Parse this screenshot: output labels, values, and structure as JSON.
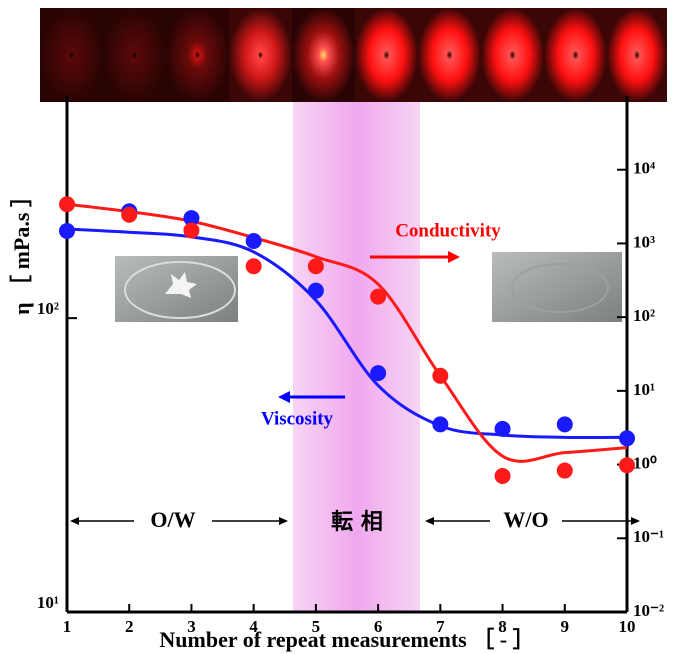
{
  "chart_data": {
    "type": "scatter",
    "xlabel": "Number of repeat measurements ［ - ］",
    "ylabel": "η ［ mPa.s ］",
    "annotations": [
      "Conductivity",
      "Viscosity",
      "O/W",
      "転 相",
      "W/O"
    ],
    "xlim": [
      1,
      10
    ],
    "xticks": [
      1,
      2,
      3,
      4,
      5,
      6,
      7,
      8,
      9,
      10
    ],
    "log_y": true,
    "ylim": [
      10,
      570
    ],
    "yticks": [
      {
        "value": 10,
        "label": "10¹"
      },
      {
        "value": 100,
        "label": "10²"
      }
    ],
    "log_y2": true,
    "y2lim": [
      0.01,
      100000
    ],
    "y2ticks": [
      {
        "value": 0.01,
        "label": "10⁻²"
      },
      {
        "value": 0.1,
        "label": "10⁻¹"
      },
      {
        "value": 1,
        "label": "10⁰"
      },
      {
        "value": 10,
        "label": "10¹"
      },
      {
        "value": 100,
        "label": "10²"
      },
      {
        "value": 1000,
        "label": "10³"
      },
      {
        "value": 10000,
        "label": "10⁴"
      }
    ],
    "series": [
      {
        "color": "#1a1aff",
        "axis": "y",
        "x": [
          1,
          2,
          3,
          4,
          5,
          6,
          7,
          8,
          9,
          10
        ],
        "values": [
          198,
          231,
          219,
          183,
          124,
          65,
          43.5,
          42,
          43.5,
          39
        ]
      },
      {
        "color": "#ff1a1a",
        "axis": "y2",
        "x": [
          1,
          2,
          3,
          4,
          5,
          6,
          7,
          8,
          9,
          10
        ],
        "values": [
          3400,
          2450,
          1500,
          490,
          490,
          190,
          16,
          0.7,
          0.83,
          0.98
        ]
      }
    ],
    "fits": [
      {
        "color": "#1a1aff",
        "axis": "y",
        "x": [
          1,
          2,
          3,
          4,
          5,
          6,
          7,
          8,
          9,
          10
        ],
        "values": [
          201,
          196,
          189,
          168,
          115,
          59,
          43,
          40,
          39.3,
          39.3
        ]
      },
      {
        "color": "#ff1a1a",
        "axis": "y2",
        "x": [
          1,
          2,
          3,
          4,
          5,
          6,
          7,
          8,
          9,
          10
        ],
        "values": [
          3400,
          2700,
          2000,
          1200,
          660,
          280,
          16,
          1.3,
          1.45,
          1.7
        ]
      }
    ]
  }
}
